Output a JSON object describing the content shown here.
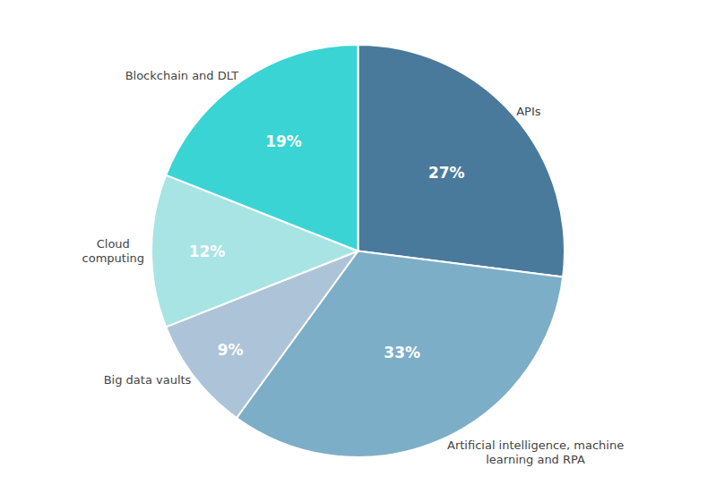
{
  "chart_data": {
    "type": "pie",
    "categories": [
      "APIs",
      "Artificial intelligence, machine\nlearning and RPA",
      "Big data vaults",
      "Cloud\ncomputing",
      "Blockchain and DLT"
    ],
    "values": [
      27,
      33,
      9,
      12,
      19
    ],
    "value_labels": [
      "27%",
      "33%",
      "9%",
      "12%",
      "19%"
    ],
    "colors": [
      "#4a7a9b",
      "#7daec8",
      "#adc4d8",
      "#a8e4e4",
      "#3ad4d4"
    ],
    "data_labels": true
  }
}
